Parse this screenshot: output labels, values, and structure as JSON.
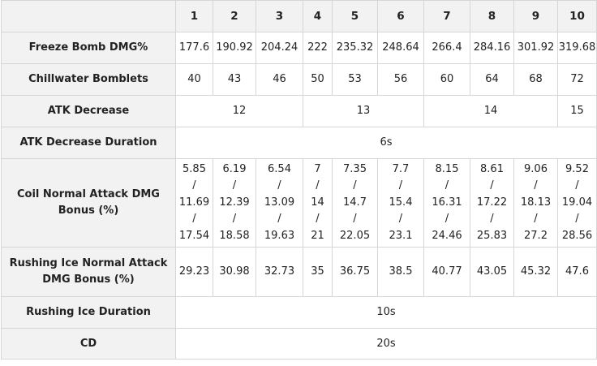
{
  "levels": [
    "1",
    "2",
    "3",
    "4",
    "5",
    "6",
    "7",
    "8",
    "9",
    "10"
  ],
  "rows": [
    {
      "label": "Freeze Bomb DMG%",
      "cells": [
        {
          "text": "177.6",
          "span": 1
        },
        {
          "text": "190.92",
          "span": 1
        },
        {
          "text": "204.24",
          "span": 1
        },
        {
          "text": "222",
          "span": 1
        },
        {
          "text": "235.32",
          "span": 1
        },
        {
          "text": "248.64",
          "span": 1
        },
        {
          "text": "266.4",
          "span": 1
        },
        {
          "text": "284.16",
          "span": 1
        },
        {
          "text": "301.92",
          "span": 1
        },
        {
          "text": "319.68",
          "span": 1
        }
      ]
    },
    {
      "label": "Chillwater Bomblets",
      "cells": [
        {
          "text": "40",
          "span": 1
        },
        {
          "text": "43",
          "span": 1
        },
        {
          "text": "46",
          "span": 1
        },
        {
          "text": "50",
          "span": 1
        },
        {
          "text": "53",
          "span": 1
        },
        {
          "text": "56",
          "span": 1
        },
        {
          "text": "60",
          "span": 1
        },
        {
          "text": "64",
          "span": 1
        },
        {
          "text": "68",
          "span": 1
        },
        {
          "text": "72",
          "span": 1
        }
      ]
    },
    {
      "label": "ATK Decrease",
      "cells": [
        {
          "text": "12",
          "span": 3
        },
        {
          "text": "13",
          "span": 3
        },
        {
          "text": "14",
          "span": 3
        },
        {
          "text": "15",
          "span": 1
        }
      ]
    },
    {
      "label": "ATK Decrease Duration",
      "cells": [
        {
          "text": "6s",
          "span": 10
        }
      ]
    },
    {
      "label": "Coil Normal Attack DMG Bonus (%)",
      "cells": [
        {
          "text": "5.85\n/\n11.69\n/\n17.54",
          "span": 1
        },
        {
          "text": "6.19\n/\n12.39\n/\n18.58",
          "span": 1
        },
        {
          "text": "6.54\n/\n13.09\n/\n19.63",
          "span": 1
        },
        {
          "text": "7\n/\n14\n/\n21",
          "span": 1
        },
        {
          "text": "7.35\n/\n14.7\n/\n22.05",
          "span": 1
        },
        {
          "text": "7.7\n/\n15.4\n/\n23.1",
          "span": 1
        },
        {
          "text": "8.15\n/\n16.31\n/\n24.46",
          "span": 1
        },
        {
          "text": "8.61\n/\n17.22\n/\n25.83",
          "span": 1
        },
        {
          "text": "9.06\n/\n18.13\n/\n27.2",
          "span": 1
        },
        {
          "text": "9.52\n/\n19.04\n/\n28.56",
          "span": 1
        }
      ]
    },
    {
      "label": "Rushing Ice Normal Attack DMG Bonus (%)",
      "cells": [
        {
          "text": "29.23",
          "span": 1
        },
        {
          "text": "30.98",
          "span": 1
        },
        {
          "text": "32.73",
          "span": 1
        },
        {
          "text": "35",
          "span": 1
        },
        {
          "text": "36.75",
          "span": 1
        },
        {
          "text": "38.5",
          "span": 1
        },
        {
          "text": "40.77",
          "span": 1
        },
        {
          "text": "43.05",
          "span": 1
        },
        {
          "text": "45.32",
          "span": 1
        },
        {
          "text": "47.6",
          "span": 1
        }
      ]
    },
    {
      "label": "Rushing Ice Duration",
      "cells": [
        {
          "text": "10s",
          "span": 10
        }
      ]
    },
    {
      "label": "CD",
      "cells": [
        {
          "text": "20s",
          "span": 10
        }
      ]
    }
  ]
}
